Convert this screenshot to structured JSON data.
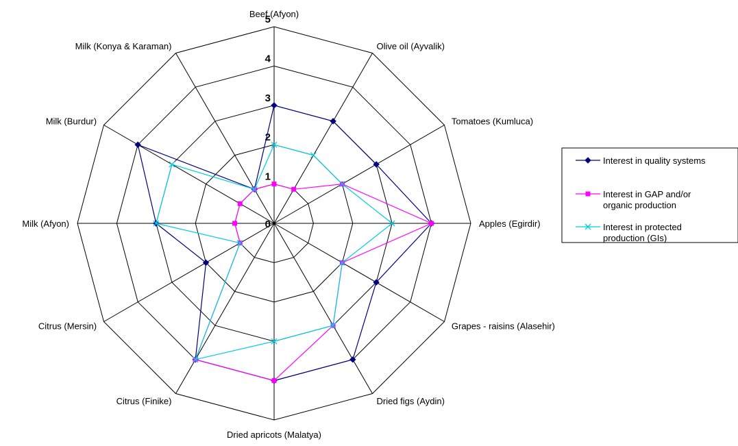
{
  "chart_data": {
    "type": "radar",
    "title": "",
    "categories": [
      "Beef (Afyon)",
      "Olive oil (Ayvalik)",
      "Tomatoes (Kumluca)",
      "Apples (Egirdir)",
      "Grapes - raisins (Alasehir)",
      "Dried figs (Aydin)",
      "Dried apricots (Malatya)",
      "Citrus (Finike)",
      "Citrus (Mersin)",
      "Milk (Afyon)",
      "Milk (Burdur)",
      "Milk (Konya & Karaman)"
    ],
    "rlim": [
      0,
      5
    ],
    "ticks": [
      "0",
      "1",
      "2",
      "3",
      "4",
      "5"
    ],
    "grid": true,
    "legend_position": "right",
    "series": [
      {
        "name": "Interest in quality systems",
        "values": [
          3,
          3,
          3,
          4,
          3,
          4,
          4,
          4,
          2,
          3,
          4,
          1
        ],
        "color": "#000080",
        "marker": "diamond"
      },
      {
        "name": "Interest in GAP and/or organic production",
        "values": [
          1,
          1,
          2,
          4,
          2,
          3,
          4,
          4,
          1,
          1,
          1,
          1
        ],
        "color": "#ff00ff",
        "marker": "square"
      },
      {
        "name": "Interest in protected production (GIs)",
        "values": [
          2,
          2,
          2,
          3,
          2,
          3,
          3,
          4,
          1,
          3,
          3,
          1
        ],
        "color": "#00ccdd",
        "marker": "x"
      }
    ]
  }
}
